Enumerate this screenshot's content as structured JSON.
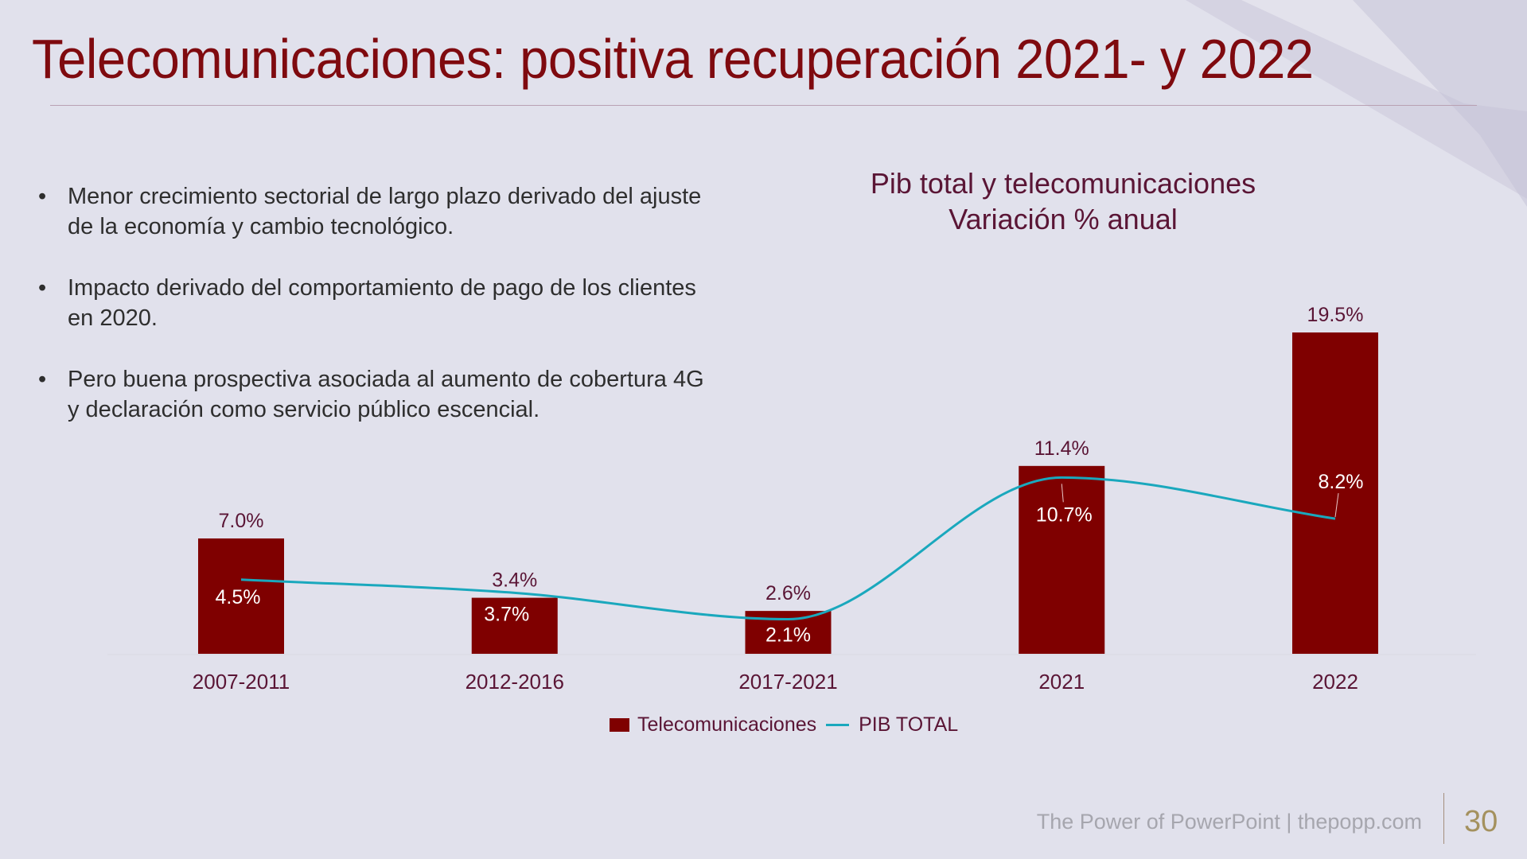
{
  "slide": {
    "title": "Telecomunicaciones: positiva recuperación 2021- y 2022",
    "bullets": [
      "Menor crecimiento sectorial de largo plazo derivado del ajuste de la economía y cambio tecnológico.",
      "Impacto derivado del comportamiento de pago de los clientes en 2020.",
      "Pero buena prospectiva asociada al aumento de cobertura 4G y declaración como servicio público escencial."
    ],
    "bullet_glyph": "•",
    "footer": "The Power of PowerPoint | thepopp.com",
    "page_number": "30"
  },
  "chart_data": {
    "type": "bar",
    "title_lines": [
      "Pib total y telecomunicaciones",
      "Variación % anual"
    ],
    "categories": [
      "2007-2011",
      "2012-2016",
      "2017-2021",
      "2021",
      "2022"
    ],
    "series": [
      {
        "name": "Telecomunicaciones",
        "kind": "bar",
        "color": "#7f0000",
        "values": [
          7.0,
          3.4,
          2.6,
          11.4,
          19.5
        ],
        "labels": [
          "7.0%",
          "3.4%",
          "2.6%",
          "11.4%",
          "19.5%"
        ]
      },
      {
        "name": "PIB TOTAL",
        "kind": "line-smooth",
        "color": "#1aa8bd",
        "values": [
          4.5,
          3.7,
          2.1,
          10.7,
          8.2
        ],
        "labels": [
          "4.5%",
          "3.7%",
          "2.1%",
          "10.7%",
          "8.2%"
        ]
      }
    ],
    "ylim": [
      0,
      19.5
    ],
    "grid": false,
    "legend_position": "bottom"
  },
  "colors": {
    "title": "#7f0a0f",
    "chart_text": "#5a1535",
    "bar": "#7f0000",
    "line": "#1aa8bd"
  }
}
